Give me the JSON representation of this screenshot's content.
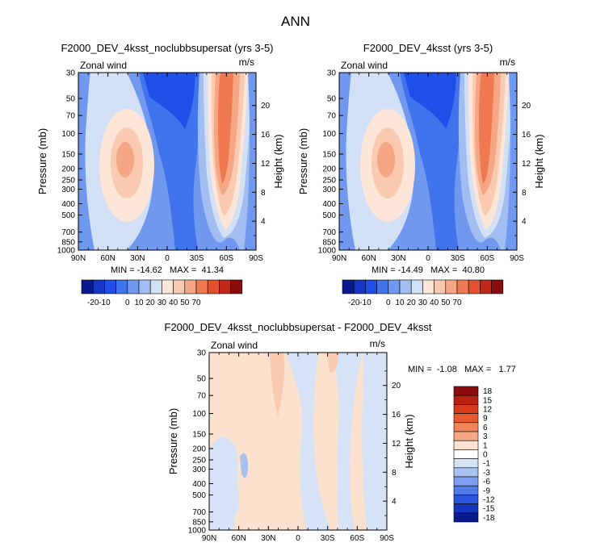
{
  "figure": {
    "title": "ANN"
  },
  "chart_data": [
    {
      "type": "heatmap",
      "title": "F2000_DEV_4ksst_noclubbsupersat (yrs 3-5)",
      "variable": "Zonal wind",
      "units": "m/s",
      "ylabel": "Pressure (mb)",
      "y2label": "Height (km)",
      "xticks": [
        "90N",
        "60N",
        "30N",
        "0",
        "30S",
        "60S",
        "90S"
      ],
      "yticks": [
        "30",
        "50",
        "70",
        "100",
        "150",
        "200",
        "250",
        "300",
        "400",
        "500",
        "700",
        "850",
        "1000"
      ],
      "y2ticks": [
        "20",
        "16",
        "12",
        "8",
        "4"
      ],
      "stats": "MIN = -14.62   MAX =  41.34",
      "colorbar_ticks": [
        "-20",
        "-10",
        "0",
        "10",
        "20",
        "30",
        "40",
        "50",
        "70"
      ]
    },
    {
      "type": "heatmap",
      "title": "F2000_DEV_4ksst (yrs 3-5)",
      "variable": "Zonal wind",
      "units": "m/s",
      "ylabel": "Pressure (mb)",
      "y2label": "Height (km)",
      "xticks": [
        "90N",
        "60N",
        "30N",
        "0",
        "30S",
        "60S",
        "90S"
      ],
      "yticks": [
        "30",
        "50",
        "70",
        "100",
        "150",
        "200",
        "250",
        "300",
        "400",
        "500",
        "700",
        "850",
        "1000"
      ],
      "y2ticks": [
        "20",
        "16",
        "12",
        "8",
        "4"
      ],
      "stats": "MIN = -14.49   MAX =  40.80",
      "colorbar_ticks": [
        "-20",
        "-10",
        "0",
        "10",
        "20",
        "30",
        "40",
        "50",
        "70"
      ]
    },
    {
      "type": "heatmap",
      "title": "F2000_DEV_4ksst_noclubbsupersat - F2000_DEV_4ksst",
      "variable": "Zonal wind",
      "units": "m/s",
      "ylabel": "Pressure (mb)",
      "y2label": "Height (km)",
      "xticks": [
        "90N",
        "60N",
        "30N",
        "0",
        "30S",
        "60S",
        "90S"
      ],
      "yticks": [
        "30",
        "50",
        "70",
        "100",
        "150",
        "200",
        "250",
        "300",
        "400",
        "500",
        "700",
        "850",
        "1000"
      ],
      "y2ticks": [
        "20",
        "16",
        "12",
        "8",
        "4"
      ],
      "stats": "MIN =  -1.08   MAX =   1.77",
      "colorbar_ticks": [
        "18",
        "15",
        "12",
        "9",
        "6",
        "3",
        "1",
        "0",
        "-1",
        "-3",
        "-6",
        "-9",
        "-12",
        "-15",
        "-18"
      ]
    }
  ],
  "colors": {
    "absolute_scale": [
      "#0a1a8c",
      "#1636c8",
      "#1f4fe8",
      "#3f74ec",
      "#6f98ee",
      "#a2bdf2",
      "#d2e0f6",
      "#fde6d8",
      "#f9c9b0",
      "#f5a684",
      "#ef7a52",
      "#e4512f",
      "#c2281a",
      "#8a0c0c"
    ],
    "difference_scale": [
      "#8a0c0c",
      "#b8200f",
      "#d83a1c",
      "#ea5a30",
      "#f0855a",
      "#f5a684",
      "#fde1cf",
      "#ffffff",
      "#d6e3f7",
      "#a9c1f1",
      "#7d9fee",
      "#4f7ae9",
      "#2a55dd",
      "#1436bd",
      "#0a1a8c"
    ]
  }
}
